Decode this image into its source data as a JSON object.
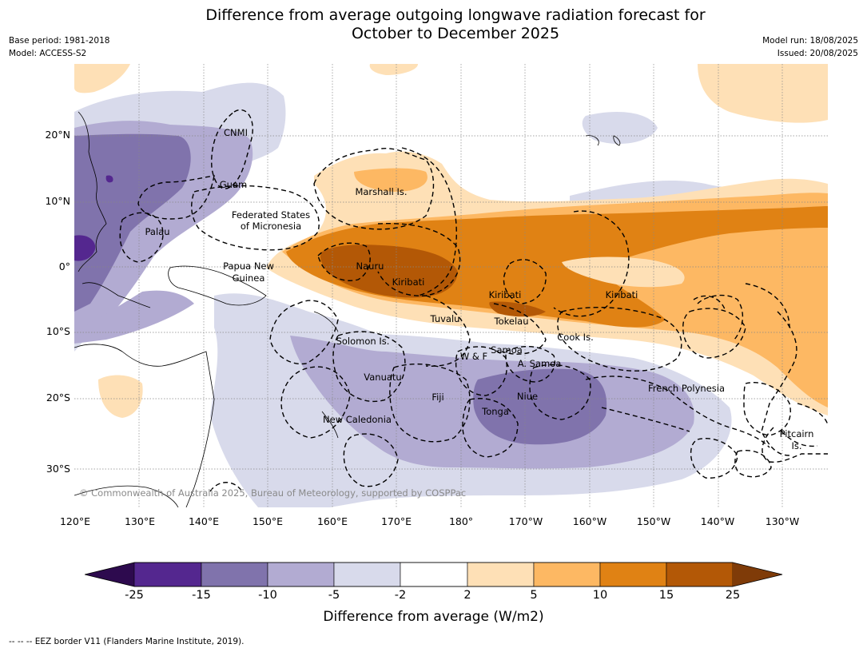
{
  "header": {
    "title_line1": "Difference from average outgoing longwave radiation forecast for",
    "title_line2": "October to December 2025",
    "base_period": "Base period: 1981-2018",
    "model": "Model: ACCESS-S2",
    "model_run": "Model run: 18/08/2025",
    "issued": "Issued: 20/08/2025"
  },
  "map": {
    "lat_ticks": [
      "20°N",
      "10°N",
      "0°",
      "10°S",
      "20°S",
      "30°S"
    ],
    "lon_ticks": [
      "120°E",
      "130°E",
      "140°E",
      "150°E",
      "160°E",
      "170°E",
      "180°",
      "170°W",
      "160°W",
      "150°W",
      "140°W",
      "130°W"
    ],
    "places": {
      "cnmi": "CNMI",
      "guam": "Guam",
      "palau": "Palau",
      "fsm_line1": "Federated States",
      "fsm_line2": "of Micronesia",
      "marshall": "Marshall Is.",
      "png_line1": "Papua New",
      "png_line2": "Guinea",
      "nauru": "Nauru",
      "kiribati_west": "Kiribati",
      "kiribati_central": "Kiribati",
      "kiribati_east": "Kiribati",
      "tuvalu": "Tuvalu",
      "tokelau": "Tokelau",
      "solomon": "Solomon Is.",
      "cook": "Cook Is.",
      "wf": "W & F",
      "samoa": "Samoa",
      "american_samoa": "A. Samoa",
      "vanuatu": "Vanuatu",
      "fiji": "Fiji",
      "niue": "Niue",
      "tonga": "Tonga",
      "french_polynesia": "French Polynesia",
      "new_caledonia": "New Caledonia",
      "pitcairn_line1": "Pitcairn",
      "pitcairn_line2": "Is."
    },
    "copyright": "© Commonwealth of Australia 2025, Bureau of Meteorology, supported by COSPPac"
  },
  "legend": {
    "ticks": [
      "-25",
      "-15",
      "-10",
      "-5",
      "-2",
      "2",
      "5",
      "10",
      "15",
      "25"
    ],
    "colors": [
      "#2d0a4e",
      "#54278f",
      "#8073ac",
      "#b2abd2",
      "#d8daeb",
      "#ffffff",
      "#fee0b6",
      "#fdb863",
      "#e08214",
      "#b35806",
      "#7f3b08"
    ],
    "label": "Difference from average (W/m2)"
  },
  "footnote": "--  --  -- EEZ border V11 (Flanders Marine Institute, 2019)."
}
